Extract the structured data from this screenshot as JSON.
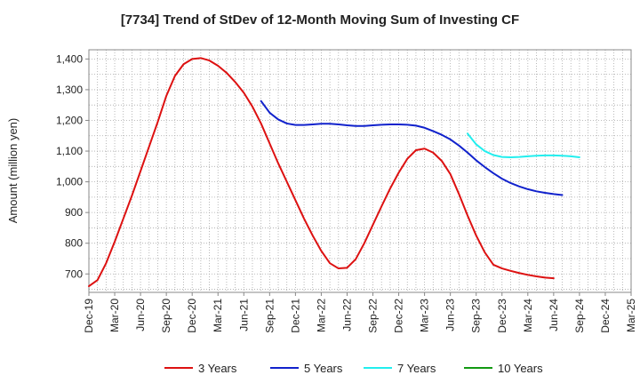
{
  "chart_data": {
    "type": "line",
    "title": "[7734]  Trend of StDev of 12-Month Moving Sum of Investing CF",
    "xlabel": "",
    "ylabel": "Amount (million yen)",
    "ylim": [
      640,
      1430
    ],
    "yticks": [
      700,
      800,
      900,
      1000,
      1100,
      1200,
      1300,
      1400
    ],
    "ytick_labels": [
      "700",
      "800",
      "900",
      "1,000",
      "1,100",
      "1,200",
      "1,300",
      "1,400"
    ],
    "x_start": "Dec-19",
    "x_end": "Mar-25",
    "xtick_labels": [
      "Dec-19",
      "Mar-20",
      "Jun-20",
      "Sep-20",
      "Dec-20",
      "Mar-21",
      "Jun-21",
      "Sep-21",
      "Dec-21",
      "Mar-22",
      "Jun-22",
      "Sep-22",
      "Dec-22",
      "Mar-23",
      "Jun-23",
      "Sep-23",
      "Dec-23",
      "Mar-24",
      "Jun-24",
      "Sep-24",
      "Dec-24",
      "Mar-25"
    ],
    "grid": true,
    "legend_position": "bottom",
    "series": [
      {
        "name": "3 Years",
        "color": "#dd1111",
        "start": "Dec-19",
        "values": [
          660,
          680,
          735,
          805,
          880,
          955,
          1035,
          1115,
          1195,
          1280,
          1345,
          1383,
          1400,
          1403,
          1395,
          1378,
          1355,
          1325,
          1290,
          1245,
          1190,
          1125,
          1060,
          1000,
          940,
          880,
          825,
          775,
          735,
          718,
          720,
          748,
          800,
          860,
          920,
          978,
          1030,
          1075,
          1103,
          1108,
          1095,
          1068,
          1025,
          960,
          890,
          825,
          770,
          730,
          718,
          710,
          703,
          697,
          692,
          688,
          686
        ]
      },
      {
        "name": "5 Years",
        "color": "#1122cc",
        "start": "Aug-21",
        "values": [
          1263,
          1225,
          1203,
          1190,
          1185,
          1185,
          1187,
          1189,
          1189,
          1187,
          1184,
          1182,
          1182,
          1184,
          1186,
          1187,
          1187,
          1186,
          1183,
          1176,
          1165,
          1153,
          1138,
          1118,
          1095,
          1070,
          1048,
          1028,
          1010,
          996,
          985,
          976,
          969,
          964,
          960,
          957
        ]
      },
      {
        "name": "7 Years",
        "color": "#22eeee",
        "start": "Aug-23",
        "values": [
          1157,
          1122,
          1100,
          1087,
          1081,
          1080,
          1081,
          1083,
          1085,
          1086,
          1086,
          1085,
          1083,
          1080
        ]
      },
      {
        "name": "10 Years",
        "color": "#119911",
        "start": null,
        "values": []
      }
    ]
  }
}
